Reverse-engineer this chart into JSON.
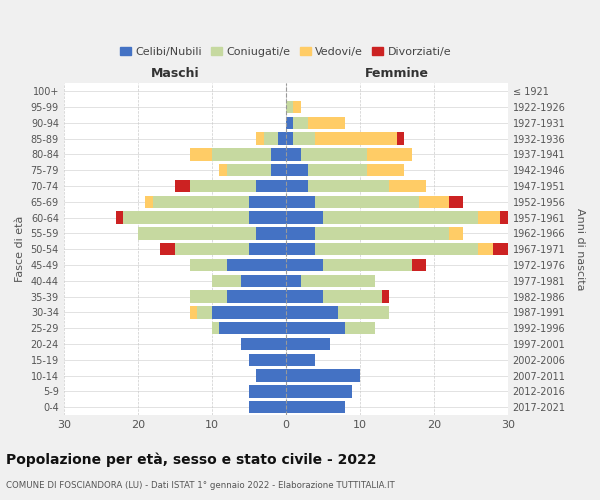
{
  "age_groups": [
    "0-4",
    "5-9",
    "10-14",
    "15-19",
    "20-24",
    "25-29",
    "30-34",
    "35-39",
    "40-44",
    "45-49",
    "50-54",
    "55-59",
    "60-64",
    "65-69",
    "70-74",
    "75-79",
    "80-84",
    "85-89",
    "90-94",
    "95-99",
    "100+"
  ],
  "birth_years": [
    "2017-2021",
    "2012-2016",
    "2007-2011",
    "2002-2006",
    "1997-2001",
    "1992-1996",
    "1987-1991",
    "1982-1986",
    "1977-1981",
    "1972-1976",
    "1967-1971",
    "1962-1966",
    "1957-1961",
    "1952-1956",
    "1947-1951",
    "1942-1946",
    "1937-1941",
    "1932-1936",
    "1927-1931",
    "1922-1926",
    "≤ 1921"
  ],
  "male": {
    "celibi": [
      5,
      5,
      4,
      5,
      6,
      9,
      10,
      8,
      6,
      8,
      5,
      4,
      5,
      5,
      4,
      2,
      2,
      1,
      0,
      0,
      0
    ],
    "coniugati": [
      0,
      0,
      0,
      0,
      0,
      1,
      2,
      5,
      4,
      5,
      10,
      16,
      17,
      13,
      9,
      6,
      8,
      2,
      0,
      0,
      0
    ],
    "vedovi": [
      0,
      0,
      0,
      0,
      0,
      0,
      1,
      0,
      0,
      0,
      0,
      0,
      0,
      1,
      0,
      1,
      3,
      1,
      0,
      0,
      0
    ],
    "divorziati": [
      0,
      0,
      0,
      0,
      0,
      0,
      0,
      0,
      0,
      0,
      2,
      0,
      1,
      0,
      2,
      0,
      0,
      0,
      0,
      0,
      0
    ]
  },
  "female": {
    "nubili": [
      8,
      9,
      10,
      4,
      6,
      8,
      7,
      5,
      2,
      5,
      4,
      4,
      5,
      4,
      3,
      3,
      2,
      1,
      1,
      0,
      0
    ],
    "coniugate": [
      0,
      0,
      0,
      0,
      0,
      4,
      7,
      8,
      10,
      12,
      22,
      18,
      21,
      14,
      11,
      8,
      9,
      3,
      2,
      1,
      0
    ],
    "vedove": [
      0,
      0,
      0,
      0,
      0,
      0,
      0,
      0,
      0,
      0,
      2,
      2,
      3,
      4,
      5,
      5,
      6,
      11,
      5,
      1,
      0
    ],
    "divorziate": [
      0,
      0,
      0,
      0,
      0,
      0,
      0,
      1,
      0,
      2,
      2,
      0,
      1,
      2,
      0,
      0,
      0,
      1,
      0,
      0,
      0
    ]
  },
  "colors": {
    "celibi": "#4472C4",
    "coniugati": "#C6D9A0",
    "vedovi": "#FFCC66",
    "divorziati": "#CC2222"
  },
  "xlim": 30,
  "title": "Popolazione per età, sesso e stato civile - 2022",
  "subtitle": "COMUNE DI FOSCIANDORA (LU) - Dati ISTAT 1° gennaio 2022 - Elaborazione TUTTITALIA.IT",
  "ylabel_left": "Fasce di età",
  "ylabel_right": "Anni di nascita",
  "xlabel_left": "Maschi",
  "xlabel_right": "Femmine",
  "legend_labels": [
    "Celibi/Nubili",
    "Coniugati/e",
    "Vedovi/e",
    "Divorziati/e"
  ],
  "bg_color": "#f0f0f0",
  "plot_bg": "#ffffff"
}
